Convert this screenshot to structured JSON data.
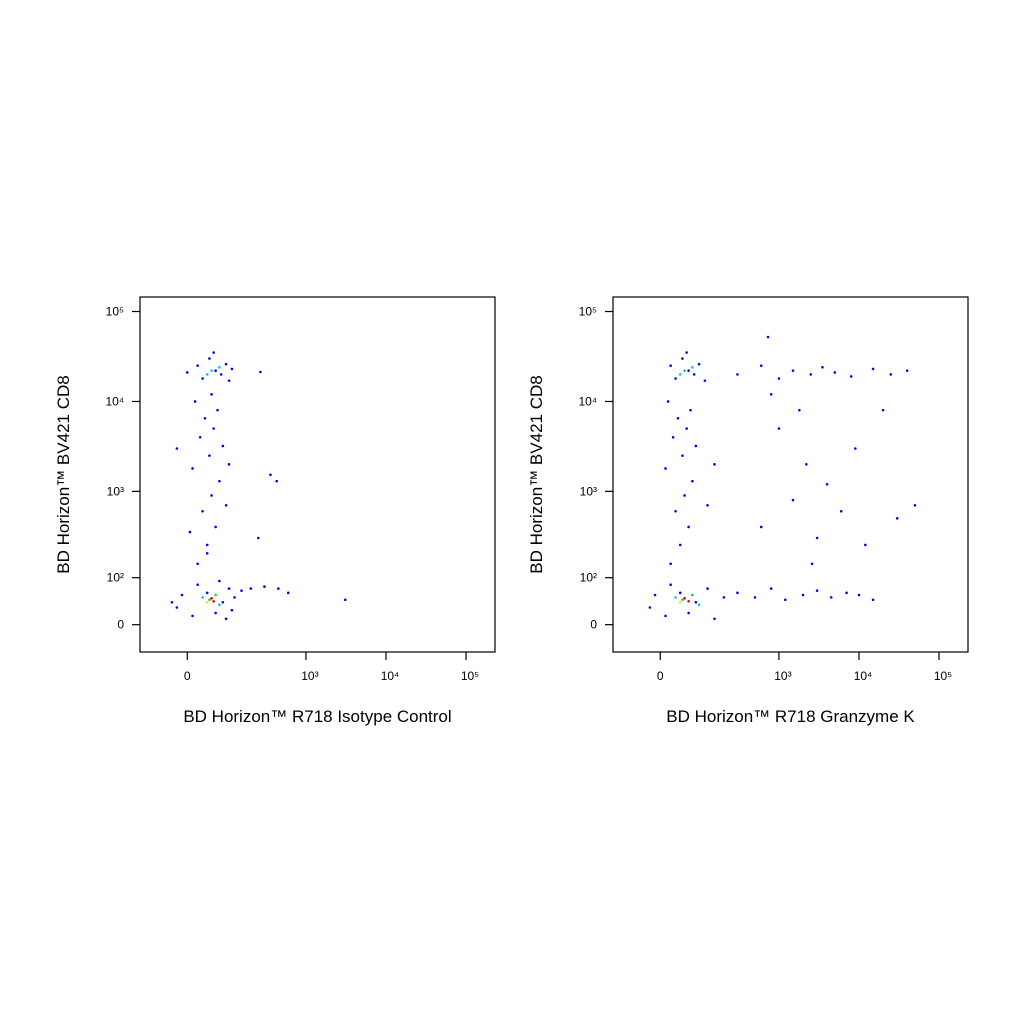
{
  "chart_data": [
    {
      "type": "scatter",
      "xscale": "biexponential",
      "yscale": "biexponential",
      "xlabel": "BD Horizon™ R718 Isotype Control",
      "ylabel": "BD Horizon™ BV421 CD8",
      "xlim": [
        -120,
        230000
      ],
      "ylim": [
        -50,
        145000
      ],
      "xticks": [
        0,
        {
          "value": 1000,
          "label": "10³"
        },
        {
          "value": 10000,
          "label": "10⁴"
        },
        {
          "value": 100000,
          "label": "10⁵"
        }
      ],
      "yticks": [
        0,
        {
          "value": 100,
          "label": "10²"
        },
        {
          "value": 1000,
          "label": "10³"
        },
        {
          "value": 10000,
          "label": "10⁴"
        },
        {
          "value": 100000,
          "label": "10⁵"
        }
      ],
      "series": [
        {
          "color": "#0000ff",
          "x": [
            -20,
            10,
            40,
            80,
            100,
            -10,
            60,
            90,
            20,
            120,
            150,
            200,
            300,
            450,
            600,
            -30,
            70,
            110,
            20,
            40,
            60,
            30,
            50,
            70,
            10,
            45,
            80,
            25,
            55,
            35,
            65,
            15,
            90,
            5,
            100,
            -20,
            50,
            40,
            30,
            60,
            90,
            45,
            75,
            20,
            100,
            55,
            110,
            0,
            266,
            358,
            3100,
            430,
            250
          ],
          "y": [
            30,
            15,
            60,
            40,
            70,
            55,
            20,
            10,
            80,
            50,
            65,
            70,
            75,
            70,
            60,
            40,
            90,
            25,
            150,
            250,
            400,
            600,
            900,
            1300,
            1800,
            2500,
            3200,
            4000,
            5000,
            6500,
            8000,
            10000,
            700,
            350,
            2000,
            3000,
            12000,
            200,
            18000,
            22000,
            26000,
            30000,
            20000,
            25000,
            17000,
            35000,
            23000,
            21000,
            21300,
            1530,
            45,
            1300,
            300
          ]
        },
        {
          "color": "#00c8e6",
          "x": [
            50,
            70,
            40,
            30,
            70
          ],
          "y": [
            22000,
            24000,
            20000,
            50,
            35
          ]
        },
        {
          "color": "#32c832",
          "x": [
            45,
            60
          ],
          "y": [
            45,
            55
          ]
        },
        {
          "color": "#ffdc00",
          "x": [
            40
          ],
          "y": [
            40
          ]
        },
        {
          "color": "#e60000",
          "x": [
            50,
            55
          ],
          "y": [
            48,
            42
          ]
        }
      ]
    },
    {
      "type": "scatter",
      "xscale": "biexponential",
      "yscale": "biexponential",
      "xlabel": "BD Horizon™ R718 Granzyme K",
      "ylabel": "BD Horizon™ BV421 CD8",
      "xlim": [
        -120,
        230000
      ],
      "ylim": [
        -50,
        145000
      ],
      "xticks": [
        0,
        {
          "value": 1000,
          "label": "10³"
        },
        {
          "value": 10000,
          "label": "10⁴"
        },
        {
          "value": 100000,
          "label": "10⁵"
        }
      ],
      "yticks": [
        0,
        {
          "value": 100,
          "label": "10²"
        },
        {
          "value": 1000,
          "label": "10³"
        },
        {
          "value": 10000,
          "label": "10⁴"
        },
        {
          "value": 100000,
          "label": "10⁵"
        }
      ],
      "series": [
        {
          "color": "#0000ff",
          "x": [
            -20,
            10,
            40,
            80,
            120,
            -10,
            60,
            150,
            20,
            200,
            20,
            40,
            60,
            30,
            50,
            70,
            10,
            45,
            80,
            25,
            55,
            35,
            65,
            15,
            120,
            150,
            30,
            60,
            90,
            45,
            75,
            20,
            110,
            55,
            300,
            600,
            1000,
            1500,
            2500,
            3500,
            5000,
            8000,
            15000,
            25000,
            40000,
            730,
            300,
            500,
            800,
            1200,
            2000,
            3000,
            4500,
            7000,
            10000,
            15000,
            600,
            1000,
            1500,
            2200,
            3000,
            4000,
            6000,
            9000,
            12000,
            20000,
            30000,
            50000,
            1800,
            2600,
            800
          ],
          "y": [
            30,
            15,
            60,
            40,
            70,
            55,
            20,
            10,
            80,
            50,
            150,
            250,
            400,
            600,
            900,
            1300,
            1800,
            2500,
            3200,
            4000,
            5000,
            6500,
            8000,
            10000,
            700,
            2000,
            18000,
            22000,
            26000,
            30000,
            20000,
            25000,
            17000,
            35000,
            20000,
            25000,
            18000,
            22000,
            20000,
            24000,
            21000,
            19000,
            23000,
            20000,
            22000,
            52000,
            60,
            50,
            70,
            45,
            55,
            65,
            50,
            60,
            55,
            45,
            400,
            5000,
            800,
            2000,
            300,
            1200,
            600,
            3000,
            250,
            8000,
            500,
            700,
            8000,
            150,
            12000
          ]
        },
        {
          "color": "#00c8e6",
          "x": [
            50,
            70,
            40,
            30,
            90
          ],
          "y": [
            22000,
            24000,
            20000,
            50,
            35
          ]
        },
        {
          "color": "#32c832",
          "x": [
            45,
            70
          ],
          "y": [
            45,
            55
          ]
        },
        {
          "color": "#ffdc00",
          "x": [
            40
          ],
          "y": [
            40
          ]
        },
        {
          "color": "#e60000",
          "x": [
            50,
            60
          ],
          "y": [
            48,
            42
          ]
        }
      ]
    }
  ]
}
